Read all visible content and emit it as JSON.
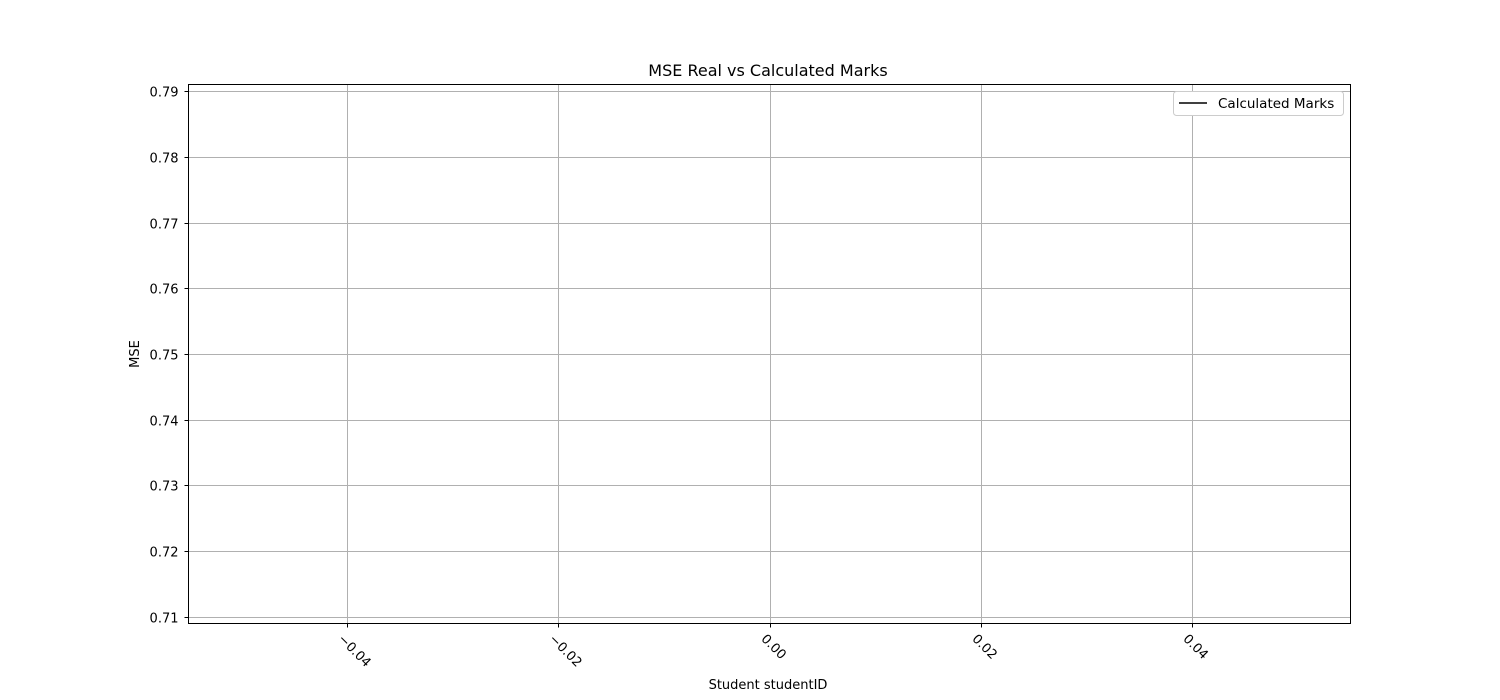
{
  "chart_data": {
    "type": "line",
    "title": "MSE Real vs Calculated Marks",
    "xlabel": "Student studentID",
    "ylabel": "MSE",
    "xlim": [
      -0.055,
      0.055
    ],
    "ylim": [
      0.709,
      0.791
    ],
    "x_ticks": [
      -0.04,
      -0.02,
      0.0,
      0.02,
      0.04
    ],
    "x_tick_labels": [
      "−0.04",
      "−0.02",
      "0.00",
      "0.02",
      "0.04"
    ],
    "x_tick_rotation_deg": 45,
    "y_ticks": [
      0.71,
      0.72,
      0.73,
      0.74,
      0.75,
      0.76,
      0.77,
      0.78,
      0.79
    ],
    "y_tick_labels": [
      "0.71",
      "0.72",
      "0.73",
      "0.74",
      "0.75",
      "0.76",
      "0.77",
      "0.78",
      "0.79"
    ],
    "grid": true,
    "legend_position": "top-right",
    "series": [
      {
        "name": "Calculated Marks",
        "color": "#000000",
        "x": [],
        "y": []
      }
    ]
  }
}
